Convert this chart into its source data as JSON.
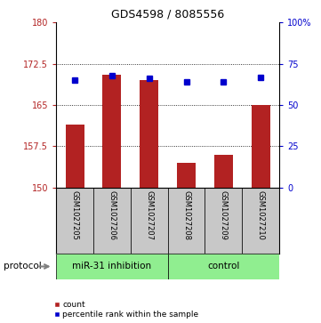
{
  "title": "GDS4598 / 8085556",
  "samples": [
    "GSM1027205",
    "GSM1027206",
    "GSM1027207",
    "GSM1027208",
    "GSM1027209",
    "GSM1027210"
  ],
  "bar_values": [
    161.5,
    170.5,
    169.5,
    154.5,
    156.0,
    165.0
  ],
  "dot_values": [
    65,
    68,
    66,
    64,
    64,
    67
  ],
  "bar_color": "#B22222",
  "dot_color": "#0000CD",
  "ylim_left": [
    150,
    180
  ],
  "ylim_right": [
    0,
    100
  ],
  "yticks_left": [
    150,
    157.5,
    165,
    172.5,
    180
  ],
  "yticks_right": [
    0,
    25,
    50,
    75,
    100
  ],
  "ytick_labels_left": [
    "150",
    "157.5",
    "165",
    "172.5",
    "180"
  ],
  "ytick_labels_right": [
    "0",
    "25",
    "50",
    "75",
    "100%"
  ],
  "groups": [
    {
      "label": "miR-31 inhibition",
      "start": 0,
      "end": 3,
      "color": "#90EE90"
    },
    {
      "label": "control",
      "start": 3,
      "end": 6,
      "color": "#90EE90"
    }
  ],
  "protocol_label": "protocol",
  "legend_count_label": "count",
  "legend_pct_label": "percentile rank within the sample",
  "bar_width": 0.5,
  "gray_color": "#C8C8C8",
  "black": "#000000",
  "label_fontsize": 6.5,
  "title_fontsize": 9
}
